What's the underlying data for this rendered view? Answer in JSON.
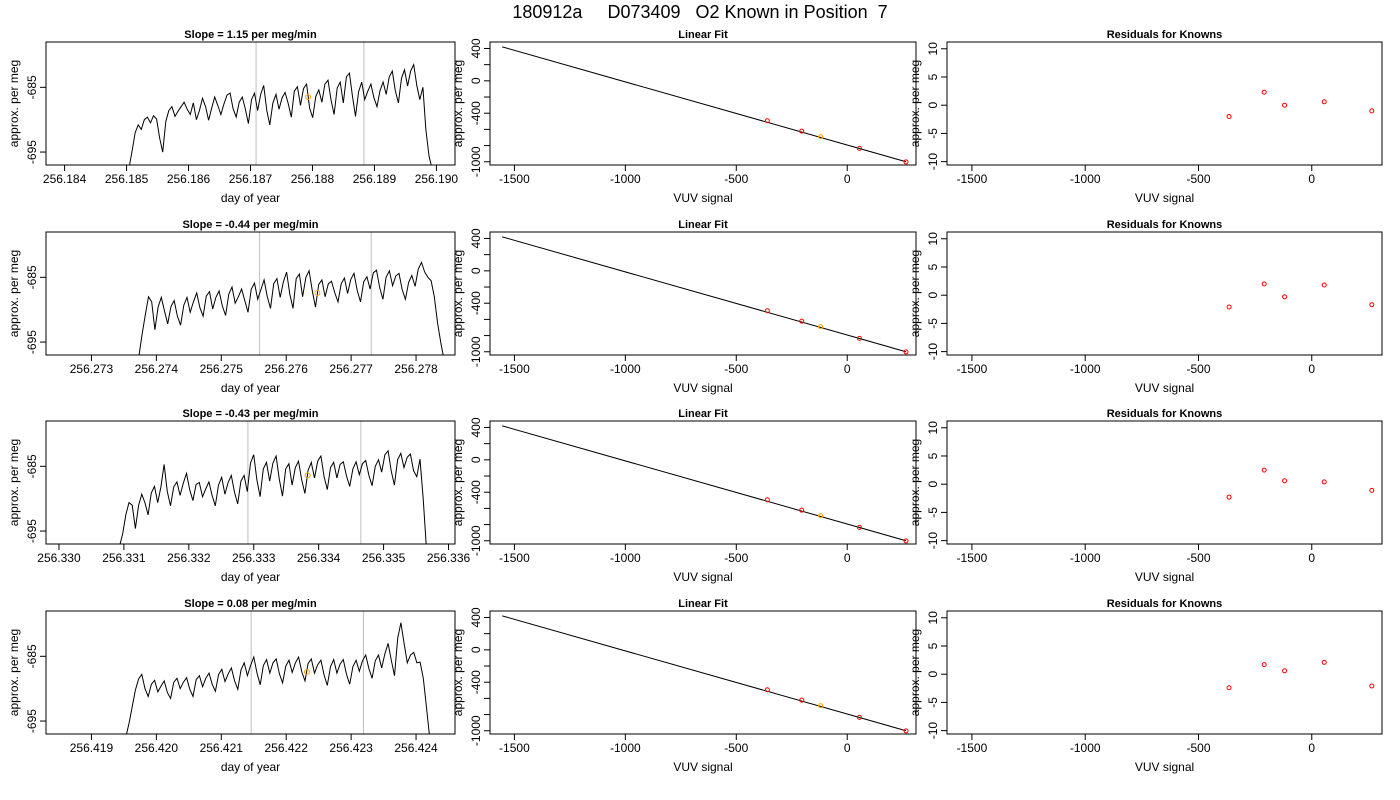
{
  "figure": {
    "title": "180912a     D073409   O2 Known in Position  7"
  },
  "colors": {
    "trace": "#000000",
    "vline": "#bebebe",
    "sample_point": "#ffa500",
    "known_point": "#ff0000",
    "fit_line": "#000000",
    "frame": "#000000"
  },
  "chart_data": [
    {
      "type": "line",
      "row": 0,
      "col": 0,
      "title_prefix": "Slope = ",
      "slope": "1.15",
      "title_suffix": " per meg/min",
      "xlabel": "day of year",
      "ylabel": "approx. per meg",
      "xlim": [
        256.1837,
        256.1903
      ],
      "ylim": [
        -697.0,
        -678.0
      ],
      "xticks": [
        "256.184",
        "256.185",
        "256.186",
        "256.187",
        "256.188",
        "256.189",
        "256.190"
      ],
      "yticks": [
        "-685",
        "-695"
      ],
      "vlines": [
        256.18709,
        256.18883
      ],
      "x_start": 256.18504,
      "x_end": 256.18993,
      "y_values": [
        -697.5,
        -694.8,
        -692.0,
        -690.8,
        -691.5,
        -690.0,
        -689.6,
        -690.5,
        -689.4,
        -689.9,
        -692.8,
        -695.0,
        -690.3,
        -688.6,
        -688.0,
        -689.5,
        -688.7,
        -688.0,
        -687.3,
        -688.4,
        -689.2,
        -687.4,
        -690.0,
        -688.6,
        -686.7,
        -688.0,
        -690.1,
        -688.2,
        -686.5,
        -687.8,
        -689.2,
        -687.6,
        -686.2,
        -685.9,
        -688.3,
        -689.6,
        -687.3,
        -686.5,
        -688.4,
        -690.6,
        -686.9,
        -685.9,
        -688.6,
        -686.1,
        -684.7,
        -688.6,
        -690.8,
        -687.4,
        -686.1,
        -688.4,
        -686.6,
        -685.8,
        -687.5,
        -689.6,
        -685.6,
        -684.9,
        -687.8,
        -685.2,
        -684.5,
        -688.2,
        -689.7,
        -686.4,
        -685.4,
        -687.3,
        -684.5,
        -683.9,
        -687.0,
        -689.2,
        -685.1,
        -684.2,
        -687.4,
        -683.4,
        -682.8,
        -686.4,
        -689.5,
        -685.7,
        -684.2,
        -686.9,
        -685.6,
        -684.5,
        -686.6,
        -688.0,
        -685.5,
        -684.2,
        -686.1,
        -683.4,
        -682.5,
        -685.5,
        -687.4,
        -683.6,
        -682.3,
        -684.8,
        -682.5,
        -681.5,
        -684.7,
        -686.9,
        -685.0,
        -691.6,
        -695.6,
        -697.6
      ],
      "marker": [
        256.18793,
        -686.5
      ]
    },
    {
      "type": "line",
      "row": 1,
      "col": 0,
      "title_prefix": "Slope = ",
      "slope": "-0.44",
      "title_suffix": " per meg/min",
      "xlabel": "day of year",
      "ylabel": "approx. per meg",
      "xlim": [
        256.2723,
        256.2786
      ],
      "ylim": [
        -697.0,
        -678.0
      ],
      "xticks": [
        "256.273",
        "256.274",
        "256.275",
        "256.276",
        "256.277",
        "256.278"
      ],
      "yticks": [
        "-685",
        "-695"
      ],
      "vlines": [
        256.27559,
        256.27731
      ],
      "x_start": 256.27373,
      "x_end": 256.27843,
      "y_values": [
        -697.3,
        -693.9,
        -690.8,
        -688.0,
        -688.8,
        -693.1,
        -689.6,
        -688.1,
        -690.2,
        -692.2,
        -689.5,
        -688.6,
        -691.0,
        -692.4,
        -689.3,
        -688.1,
        -690.4,
        -688.8,
        -687.4,
        -689.7,
        -691.0,
        -687.9,
        -687.2,
        -689.9,
        -688.1,
        -687.1,
        -689.4,
        -690.9,
        -687.6,
        -686.5,
        -689.0,
        -688.0,
        -686.8,
        -688.6,
        -690.4,
        -686.8,
        -685.9,
        -688.4,
        -686.9,
        -685.4,
        -688.0,
        -689.8,
        -686.0,
        -685.2,
        -688.1,
        -685.7,
        -684.2,
        -687.6,
        -689.8,
        -685.2,
        -684.5,
        -688.0,
        -685.0,
        -684.0,
        -687.1,
        -689.6,
        -686.1,
        -685.4,
        -688.0,
        -686.0,
        -685.6,
        -687.4,
        -688.8,
        -686.0,
        -685.1,
        -687.5,
        -685.3,
        -684.4,
        -687.0,
        -688.8,
        -685.7,
        -684.9,
        -686.8,
        -684.3,
        -683.9,
        -686.6,
        -688.4,
        -685.0,
        -684.0,
        -686.3,
        -684.8,
        -684.4,
        -686.9,
        -688.4,
        -685.8,
        -684.7,
        -686.4,
        -683.7,
        -682.7,
        -684.2,
        -685.0,
        -685.5,
        -688.0,
        -692.0,
        -695.1,
        -697.7
      ],
      "marker": [
        256.27648,
        -687.4
      ]
    },
    {
      "type": "line",
      "row": 2,
      "col": 0,
      "title_prefix": "Slope = ",
      "slope": "-0.43",
      "title_suffix": " per meg/min",
      "xlabel": "day of year",
      "ylabel": "approx. per meg",
      "xlim": [
        256.3298,
        256.3361
      ],
      "ylim": [
        -697.0,
        -678.0
      ],
      "xticks": [
        "256.330",
        "256.331",
        "256.332",
        "256.333",
        "256.334",
        "256.335",
        "256.336"
      ],
      "yticks": [
        "-685",
        "-695"
      ],
      "vlines": [
        256.33291,
        256.33465
      ],
      "x_start": 256.33093,
      "x_end": 256.33566,
      "y_values": [
        -697.4,
        -695.5,
        -692.5,
        -690.6,
        -691.0,
        -694.6,
        -691.0,
        -689.3,
        -690.6,
        -692.5,
        -689.1,
        -688.1,
        -690.6,
        -688.2,
        -684.7,
        -688.9,
        -691.1,
        -688.2,
        -687.4,
        -689.5,
        -687.6,
        -686.1,
        -688.6,
        -690.3,
        -687.8,
        -687.5,
        -689.7,
        -688.5,
        -687.4,
        -689.5,
        -691.1,
        -687.9,
        -686.7,
        -689.3,
        -687.5,
        -686.4,
        -689.0,
        -690.8,
        -687.3,
        -686.4,
        -688.9,
        -684.5,
        -683.2,
        -687.1,
        -689.7,
        -685.4,
        -684.4,
        -687.3,
        -684.5,
        -683.4,
        -687.0,
        -689.6,
        -685.4,
        -684.6,
        -687.9,
        -685.2,
        -684.2,
        -687.1,
        -689.2,
        -685.6,
        -684.4,
        -686.8,
        -684.2,
        -683.4,
        -686.6,
        -688.6,
        -685.2,
        -684.4,
        -686.8,
        -684.7,
        -684.3,
        -686.5,
        -688.1,
        -685.4,
        -684.3,
        -686.3,
        -684.6,
        -684.1,
        -686.4,
        -688.0,
        -685.0,
        -684.0,
        -685.9,
        -683.2,
        -682.6,
        -685.7,
        -687.9,
        -684.0,
        -683.0,
        -685.2,
        -683.6,
        -683.1,
        -685.7,
        -686.6,
        -683.9,
        -690.0,
        -697.6
      ],
      "marker": [
        256.33383,
        -686.4
      ]
    },
    {
      "type": "line",
      "row": 3,
      "col": 0,
      "title_prefix": "Slope = ",
      "slope": "0.08",
      "title_suffix": " per meg/min",
      "xlabel": "day of year",
      "ylabel": "approx. per meg",
      "xlim": [
        256.4183,
        256.4246
      ],
      "ylim": [
        -697.0,
        -678.0
      ],
      "xticks": [
        "256.419",
        "256.420",
        "256.421",
        "256.422",
        "256.423",
        "256.424"
      ],
      "yticks": [
        "-685",
        "-695"
      ],
      "vlines": [
        256.42146,
        256.42319
      ],
      "x_start": 256.41953,
      "x_end": 256.42421,
      "y_values": [
        -697.4,
        -695.3,
        -692.8,
        -690.2,
        -688.5,
        -687.8,
        -690.0,
        -691.2,
        -689.3,
        -688.7,
        -690.5,
        -689.6,
        -688.8,
        -690.6,
        -691.5,
        -689.0,
        -688.4,
        -690.0,
        -689.0,
        -688.3,
        -690.1,
        -691.2,
        -688.6,
        -688.0,
        -689.7,
        -688.4,
        -687.6,
        -689.3,
        -690.4,
        -687.8,
        -687.0,
        -688.9,
        -687.7,
        -686.8,
        -688.8,
        -690.1,
        -687.1,
        -686.0,
        -688.0,
        -686.4,
        -685.1,
        -687.6,
        -689.4,
        -686.4,
        -685.5,
        -687.6,
        -686.0,
        -685.4,
        -687.7,
        -689.1,
        -686.5,
        -685.6,
        -687.5,
        -686.0,
        -685.1,
        -687.4,
        -688.8,
        -686.1,
        -685.4,
        -687.6,
        -686.3,
        -685.6,
        -687.9,
        -689.5,
        -686.6,
        -685.5,
        -687.6,
        -686.2,
        -685.5,
        -687.8,
        -689.3,
        -686.6,
        -685.6,
        -687.3,
        -685.7,
        -684.8,
        -686.9,
        -688.4,
        -685.7,
        -684.8,
        -686.8,
        -684.6,
        -683.0,
        -685.6,
        -688.0,
        -682.2,
        -679.8,
        -683.0,
        -686.0,
        -684.8,
        -684.4,
        -686.0,
        -685.9,
        -688.4,
        -692.9,
        -697.6
      ],
      "marker": [
        256.42232,
        -687.4
      ]
    },
    {
      "type": "scatter",
      "row": 0,
      "col": 1,
      "title": "Linear Fit",
      "xlabel": "VUV signal",
      "ylabel": "approx. per meg",
      "xlim": [
        -1610,
        310
      ],
      "ylim": [
        -1040,
        480
      ],
      "xticks": [
        -1500,
        -1000,
        -500,
        0
      ],
      "yticks": [
        400,
        0,
        -400,
        -1000
      ],
      "fit_line": [
        [
          -1555,
          420
        ],
        [
          265,
          -1000
        ]
      ],
      "knowns": [
        [
          -360,
          -493
        ],
        [
          -205,
          -622
        ],
        [
          55,
          -834
        ],
        [
          265,
          -1002
        ]
      ],
      "sample": [
        -120,
        -689
      ]
    },
    {
      "type": "scatter",
      "row": 1,
      "col": 1,
      "title": "Linear Fit",
      "xlabel": "VUV signal",
      "ylabel": "approx. per meg",
      "xlim": [
        -1610,
        310
      ],
      "ylim": [
        -1040,
        480
      ],
      "xticks": [
        -1500,
        -1000,
        -500,
        0
      ],
      "yticks": [
        400,
        0,
        -400,
        -1000
      ],
      "fit_line": [
        [
          -1555,
          420
        ],
        [
          265,
          -1000
        ]
      ],
      "knowns": [
        [
          -360,
          -493
        ],
        [
          -205,
          -622
        ],
        [
          55,
          -834
        ],
        [
          265,
          -1002
        ]
      ],
      "sample": [
        -120,
        -689
      ]
    },
    {
      "type": "scatter",
      "row": 2,
      "col": 1,
      "title": "Linear Fit",
      "xlabel": "VUV signal",
      "ylabel": "approx. per meg",
      "xlim": [
        -1610,
        310
      ],
      "ylim": [
        -1040,
        480
      ],
      "xticks": [
        -1500,
        -1000,
        -500,
        0
      ],
      "yticks": [
        400,
        0,
        -400,
        -1000
      ],
      "fit_line": [
        [
          -1555,
          420
        ],
        [
          265,
          -1000
        ]
      ],
      "knowns": [
        [
          -360,
          -493
        ],
        [
          -205,
          -622
        ],
        [
          55,
          -834
        ],
        [
          265,
          -1002
        ]
      ],
      "sample": [
        -120,
        -689
      ]
    },
    {
      "type": "scatter",
      "row": 3,
      "col": 1,
      "title": "Linear Fit",
      "xlabel": "VUV signal",
      "ylabel": "approx. per meg",
      "xlim": [
        -1610,
        310
      ],
      "ylim": [
        -1040,
        480
      ],
      "xticks": [
        -1500,
        -1000,
        -500,
        0
      ],
      "yticks": [
        400,
        0,
        -400,
        -1000
      ],
      "fit_line": [
        [
          -1555,
          420
        ],
        [
          265,
          -1000
        ]
      ],
      "knowns": [
        [
          -360,
          -493
        ],
        [
          -205,
          -622
        ],
        [
          55,
          -834
        ],
        [
          265,
          -1002
        ]
      ],
      "sample": [
        -120,
        -689
      ]
    },
    {
      "type": "scatter",
      "row": 0,
      "col": 2,
      "title": "Residuals for Knowns",
      "xlabel": "VUV signal",
      "ylabel": "approx. per meg",
      "xlim": [
        -1610,
        310
      ],
      "ylim": [
        -10.6,
        11.2
      ],
      "xticks": [
        -1500,
        -1000,
        -500,
        0
      ],
      "yticks": [
        10,
        5,
        0,
        -5,
        -10
      ],
      "points": [
        [
          -365,
          -2.0
        ],
        [
          -210,
          2.3
        ],
        [
          -120,
          0.0
        ],
        [
          55,
          0.6
        ],
        [
          265,
          -1.0
        ]
      ]
    },
    {
      "type": "scatter",
      "row": 1,
      "col": 2,
      "title": "Residuals for Knowns",
      "xlabel": "VUV signal",
      "ylabel": "approx. per meg",
      "xlim": [
        -1610,
        310
      ],
      "ylim": [
        -10.6,
        11.2
      ],
      "xticks": [
        -1500,
        -1000,
        -500,
        0
      ],
      "yticks": [
        10,
        5,
        0,
        -5,
        -10
      ],
      "points": [
        [
          -365,
          -2.1
        ],
        [
          -210,
          2.0
        ],
        [
          -120,
          -0.3
        ],
        [
          55,
          1.8
        ],
        [
          265,
          -1.7
        ]
      ]
    },
    {
      "type": "scatter",
      "row": 2,
      "col": 2,
      "title": "Residuals for Knowns",
      "xlabel": "VUV signal",
      "ylabel": "approx. per meg",
      "xlim": [
        -1610,
        310
      ],
      "ylim": [
        -10.6,
        11.2
      ],
      "xticks": [
        -1500,
        -1000,
        -500,
        0
      ],
      "yticks": [
        10,
        5,
        0,
        -5,
        -10
      ],
      "points": [
        [
          -365,
          -2.3
        ],
        [
          -210,
          2.5
        ],
        [
          -120,
          0.6
        ],
        [
          55,
          0.4
        ],
        [
          265,
          -1.1
        ]
      ]
    },
    {
      "type": "scatter",
      "row": 3,
      "col": 2,
      "title": "Residuals for Knowns",
      "xlabel": "VUV signal",
      "ylabel": "approx. per meg",
      "xlim": [
        -1610,
        310
      ],
      "ylim": [
        -10.6,
        11.2
      ],
      "xticks": [
        -1500,
        -1000,
        -500,
        0
      ],
      "yticks": [
        10,
        5,
        0,
        -5,
        -10
      ],
      "points": [
        [
          -365,
          -2.4
        ],
        [
          -210,
          1.7
        ],
        [
          -120,
          0.6
        ],
        [
          55,
          2.1
        ],
        [
          265,
          -2.1
        ]
      ]
    }
  ]
}
